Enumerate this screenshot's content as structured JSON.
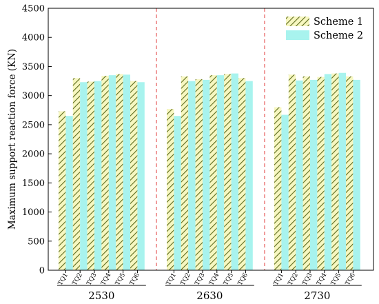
{
  "chart_data": {
    "type": "bar",
    "ylabel": "Maximum support reaction force (KN)",
    "ylim": [
      0,
      4500
    ],
    "yticks": [
      0,
      500,
      1000,
      1500,
      2000,
      2500,
      3000,
      3500,
      4000,
      4500
    ],
    "categories": [
      "TQ1",
      "TQ2",
      "TQ3",
      "TQ4",
      "TQ5",
      "TQ6"
    ],
    "groups": [
      {
        "label": "2530",
        "series": [
          {
            "name": "Scheme 1",
            "values": [
              2730,
              3300,
              3240,
              3340,
              3370,
              3250
            ]
          },
          {
            "name": "Scheme 2",
            "values": [
              2650,
              3230,
              3250,
              3350,
              3360,
              3230
            ]
          }
        ]
      },
      {
        "label": "2630",
        "series": [
          {
            "name": "Scheme 1",
            "values": [
              2770,
              3330,
              3280,
              3350,
              3370,
              3300
            ]
          },
          {
            "name": "Scheme 2",
            "values": [
              2650,
              3250,
              3270,
              3350,
              3380,
              3250
            ]
          }
        ]
      },
      {
        "label": "2730",
        "series": [
          {
            "name": "Scheme 1",
            "values": [
              2800,
              3360,
              3330,
              3320,
              3380,
              3330
            ]
          },
          {
            "name": "Scheme 2",
            "values": [
              2670,
              3260,
              3270,
              3370,
              3390,
              3270
            ]
          }
        ]
      }
    ],
    "legend": {
      "position": "top-right",
      "entries": [
        "Scheme 1",
        "Scheme 2"
      ]
    },
    "colors": {
      "scheme1_fill": "#f7f7c0",
      "scheme1_hatch": "#5c6b1e",
      "scheme2_fill": "#a8f3ee",
      "separator": "#e03a3a"
    },
    "grid": false
  }
}
